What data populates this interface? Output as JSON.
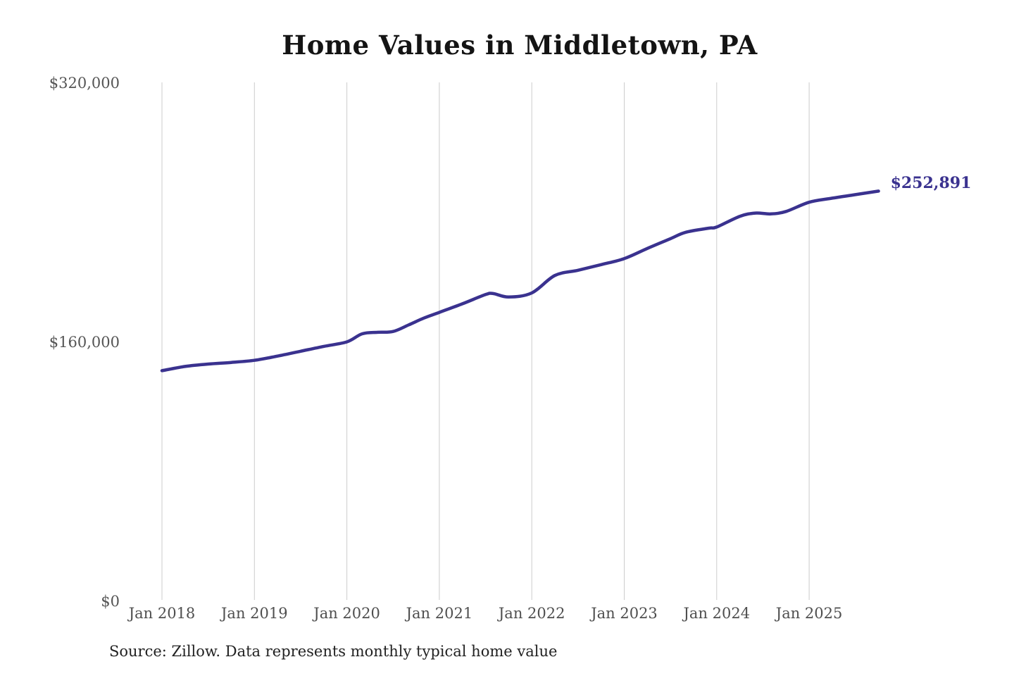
{
  "page": {
    "background_color": "#ffffff"
  },
  "chart": {
    "title": "Home Values in Middletown, PA",
    "source": "Source: Zillow. Data represents monthly typical home value",
    "end_label": "$252,891",
    "accent_color": "#3a328f"
  },
  "chart_data": {
    "type": "line",
    "title": "Home Values in Middletown, PA",
    "xlabel": "",
    "ylabel": "",
    "ylim": [
      0,
      320000
    ],
    "grid": "vertical-yearly-only",
    "legend": "none",
    "line_color": "#3a328f",
    "gridline_color": "#cccccc",
    "y_ticks": [
      {
        "value": 0,
        "label": "$0"
      },
      {
        "value": 160000,
        "label": "$160,000"
      },
      {
        "value": 320000,
        "label": "$320,000"
      }
    ],
    "x_ticks": [
      {
        "year": 2018,
        "label": "Jan 2018"
      },
      {
        "year": 2019,
        "label": "Jan 2019"
      },
      {
        "year": 2020,
        "label": "Jan 2020"
      },
      {
        "year": 2021,
        "label": "Jan 2021"
      },
      {
        "year": 2022,
        "label": "Jan 2022"
      },
      {
        "year": 2023,
        "label": "Jan 2023"
      },
      {
        "year": 2024,
        "label": "Jan 2024"
      },
      {
        "year": 2025,
        "label": "Jan 2025"
      }
    ],
    "series": [
      {
        "name": "Monthly typical home value",
        "last_point_label": "$252,891",
        "points": [
          [
            "2018-01",
            142000
          ],
          [
            "2018-04",
            144600
          ],
          [
            "2018-07",
            146100
          ],
          [
            "2018-10",
            147100
          ],
          [
            "2019-01",
            148400
          ],
          [
            "2019-04",
            151000
          ],
          [
            "2019-07",
            154000
          ],
          [
            "2019-10",
            157000
          ],
          [
            "2020-01",
            159800
          ],
          [
            "2020-03",
            164800
          ],
          [
            "2020-05",
            165700
          ],
          [
            "2020-07",
            166200
          ],
          [
            "2020-09",
            170200
          ],
          [
            "2020-11",
            174500
          ],
          [
            "2021-01",
            178000
          ],
          [
            "2021-04",
            183300
          ],
          [
            "2021-07",
            189000
          ],
          [
            "2021-08",
            189600
          ],
          [
            "2021-10",
            187500
          ],
          [
            "2022-01",
            190000
          ],
          [
            "2022-04",
            200800
          ],
          [
            "2022-07",
            204000
          ],
          [
            "2022-10",
            207500
          ],
          [
            "2023-01",
            211200
          ],
          [
            "2023-04",
            217500
          ],
          [
            "2023-07",
            223500
          ],
          [
            "2023-09",
            227500
          ],
          [
            "2023-12",
            230000
          ],
          [
            "2024-01",
            230700
          ],
          [
            "2024-04",
            237300
          ],
          [
            "2024-06",
            239300
          ],
          [
            "2024-08",
            238800
          ],
          [
            "2024-10",
            240300
          ],
          [
            "2025-01",
            246000
          ],
          [
            "2025-04",
            248500
          ],
          [
            "2025-07",
            250700
          ],
          [
            "2025-10",
            252891
          ]
        ]
      }
    ]
  }
}
